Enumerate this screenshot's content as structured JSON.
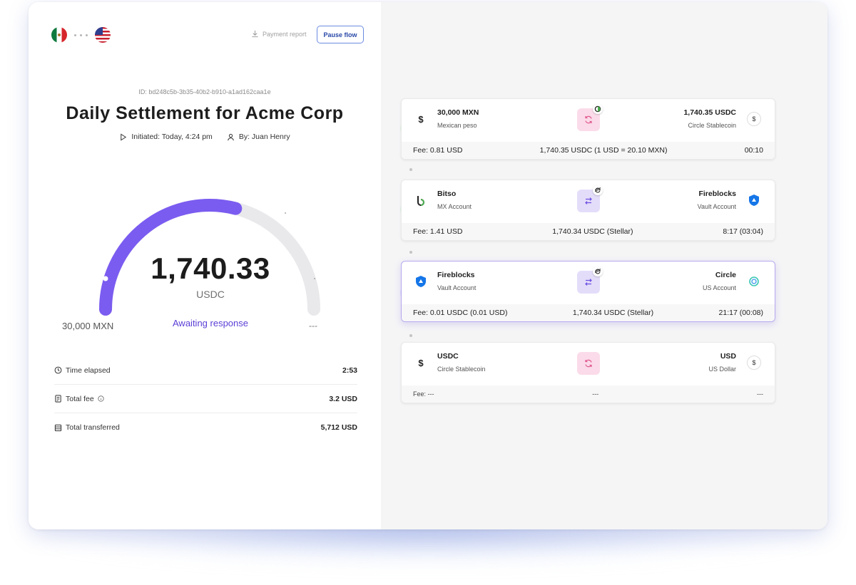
{
  "header": {
    "payment_report_label": "Payment report",
    "pause_label": "Pause flow"
  },
  "flow": {
    "id_label": "ID: bd248c5b-3b35-40b2-b910-a1ad162caa1e",
    "title": "Daily Settlement for Acme Corp",
    "initiated": "Initiated: Today, 4:24 pm",
    "by": "By: Juan Henry"
  },
  "gauge": {
    "amount": "1,740.33",
    "unit": "USDC",
    "status": "Awaiting response",
    "from_label": "30,000 MXN",
    "to_label": "---",
    "progress": 0.58,
    "accent_color": "#7b5cf0"
  },
  "stats": [
    {
      "label": "Time elapsed",
      "value": "2:53",
      "icon": "clock-icon"
    },
    {
      "label": "Total fee",
      "value": "3.2 USD",
      "icon": "receipt-icon"
    },
    {
      "label": "Total transferred",
      "value": "5,712 USD",
      "icon": "ledger-icon"
    }
  ],
  "timeline": {
    "step3": "3",
    "step4": "4"
  },
  "steps": [
    {
      "left_title": "30,000 MXN",
      "left_sub": "Mexican peso",
      "right_title": "1,740.35 USDC",
      "right_sub": "Circle Stablecoin",
      "fee": "Fee: 0.81 USD",
      "middle": "1,740.35 USDC (1 USD = 20.10 MXN)",
      "time": "00:10",
      "right_badge": "$"
    },
    {
      "left_title": "Bitso",
      "left_sub": "MX Account",
      "right_title": "Fireblocks",
      "right_sub": "Vault Account",
      "fee": "Fee: 1.41 USD",
      "middle": "1,740.34 USDC (Stellar)",
      "time": "8:17 (03:04)"
    },
    {
      "left_title": "Fireblocks",
      "left_sub": "Vault Account",
      "right_title": "Circle",
      "right_sub": "US Account",
      "fee": "Fee: 0.01 USDC (0.01 USD)",
      "middle": "1,740.34 USDC (Stellar)",
      "time": "21:17 (00:08)"
    },
    {
      "left_title": "USDC",
      "left_sub": "Circle Stablecoin",
      "right_title": "USD",
      "right_sub": "US Dollar",
      "fee": "Fee: ---",
      "middle": "---",
      "time": "---",
      "right_badge": "$"
    }
  ]
}
